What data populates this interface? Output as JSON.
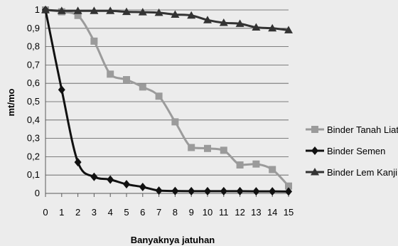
{
  "chart_data": {
    "type": "line",
    "title": "",
    "xlabel": "Banyaknya jatuhan",
    "ylabel": "mt/mo",
    "x": [
      0,
      1,
      2,
      3,
      4,
      5,
      6,
      7,
      8,
      9,
      10,
      11,
      12,
      13,
      14,
      15
    ],
    "xticks": [
      "0",
      "1",
      "2",
      "3",
      "4",
      "5",
      "6",
      "7",
      "8",
      "9",
      "10",
      "11",
      "12",
      "13",
      "14",
      "15"
    ],
    "yticks": [
      "0",
      "0,1",
      "0,2",
      "0,3",
      "0,4",
      "0,5",
      "0,6",
      "0,7",
      "0,8",
      "0,9",
      "1"
    ],
    "ylim": [
      0,
      1
    ],
    "grid": true,
    "legend_position": "right",
    "series": [
      {
        "name": "Binder Tanah Liat",
        "marker": "square",
        "color": "#9b9b9b",
        "values": [
          1,
          0.99,
          0.97,
          0.83,
          0.65,
          0.62,
          0.58,
          0.53,
          0.39,
          0.25,
          0.245,
          0.235,
          0.155,
          0.16,
          0.13,
          0.04
        ]
      },
      {
        "name": "Binder Semen",
        "marker": "diamond",
        "color": "#111111",
        "values": [
          1,
          0.565,
          0.17,
          0.09,
          0.075,
          0.05,
          0.035,
          0.015,
          0.013,
          0.012,
          0.012,
          0.012,
          0.012,
          0.011,
          0.011,
          0.01
        ]
      },
      {
        "name": "Binder Lem Kanji",
        "marker": "triangle",
        "color": "#333333",
        "values": [
          1,
          0.995,
          0.995,
          0.995,
          0.995,
          0.99,
          0.988,
          0.985,
          0.975,
          0.97,
          0.945,
          0.93,
          0.925,
          0.905,
          0.9,
          0.89
        ]
      }
    ]
  }
}
